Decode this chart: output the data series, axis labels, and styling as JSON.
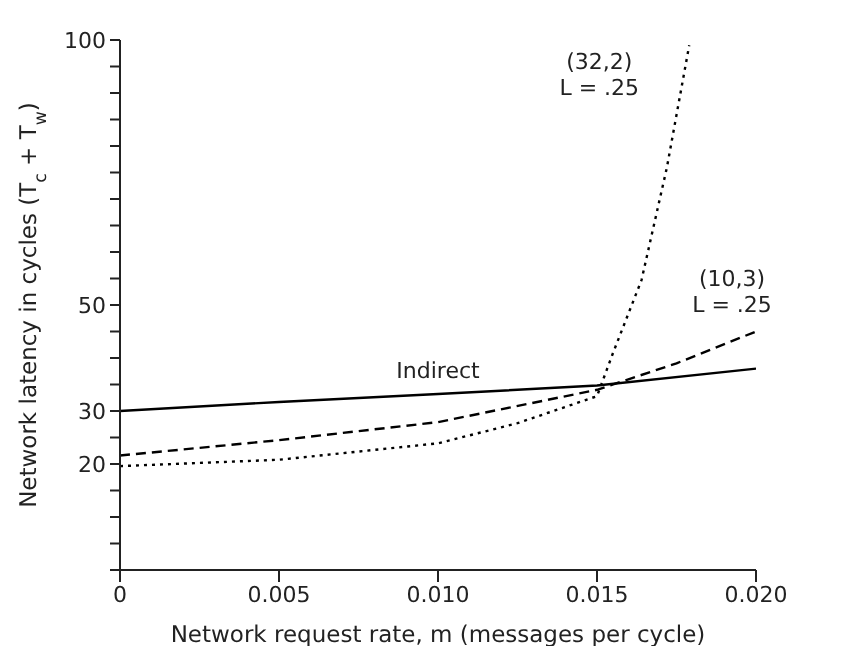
{
  "chart_data": {
    "type": "line",
    "xlabel": "Network request rate, m (messages per cycle)",
    "ylabel": "Network latency in cycles (T$_{c}$ + T$_{w}$)",
    "xlim": [
      0,
      0.02
    ],
    "xticks": [
      0,
      0.005,
      {
        "value": 0.01,
        "label": "0.010"
      },
      0.015,
      {
        "value": 0.02,
        "label": "0.020"
      }
    ],
    "ylim": [
      0,
      100
    ],
    "yticks": [
      {
        "value": 0,
        "label": null
      },
      {
        "value": 5,
        "label": null
      },
      {
        "value": 10,
        "label": null
      },
      {
        "value": 15,
        "label": null
      },
      20,
      {
        "value": 25,
        "label": null
      },
      30,
      {
        "value": 35,
        "label": null
      },
      {
        "value": 40,
        "label": null
      },
      {
        "value": 45,
        "label": null
      },
      50,
      {
        "value": 55,
        "label": null
      },
      {
        "value": 60,
        "label": null
      },
      {
        "value": 65,
        "label": null
      },
      {
        "value": 70,
        "label": null
      },
      {
        "value": 75,
        "label": null
      },
      {
        "value": 80,
        "label": null
      },
      {
        "value": 85,
        "label": null
      },
      {
        "value": 90,
        "label": null
      },
      {
        "value": 95,
        "label": null
      },
      100
    ],
    "marker": "none",
    "series": [
      {
        "name": "Indirect",
        "color": "#000000",
        "line_style": "solid",
        "x": [
          0,
          0.005,
          0.01,
          0.015,
          0.02
        ],
        "values": [
          30,
          31.7,
          33.2,
          34.8,
          38
        ]
      },
      {
        "name": "(10,3)\nL = .25",
        "color": "#000000",
        "line_style": "dashed",
        "x": [
          0,
          0.005,
          0.01,
          0.015,
          0.0175,
          0.02
        ],
        "values": [
          21.6,
          24.5,
          27.9,
          34,
          39,
          45
        ]
      },
      {
        "name": "(32,2)\nL = .25",
        "color": "#000000",
        "line_style": "dotted",
        "x": [
          0,
          0.005,
          0.01,
          0.0125,
          0.015,
          0.0155,
          0.0164,
          0.0172,
          0.0179
        ],
        "values": [
          19.6,
          20.8,
          23.9,
          27.7,
          32.8,
          40.9,
          54.7,
          76,
          99
        ]
      }
    ]
  }
}
